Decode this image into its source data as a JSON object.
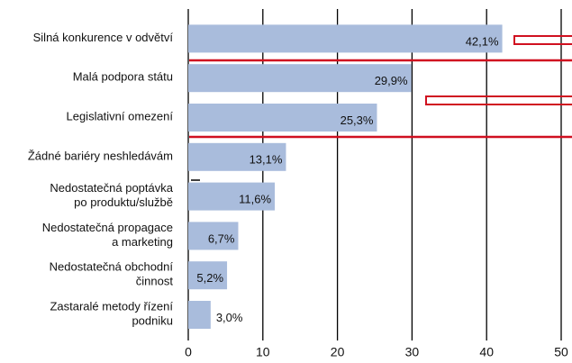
{
  "chart_data": {
    "type": "bar",
    "orientation": "horizontal",
    "categories": [
      [
        "Silná konkurence v odvětví"
      ],
      [
        "Malá podpora státu"
      ],
      [
        "Legislativní omezení"
      ],
      [
        "Žádné bariéry neshledávám"
      ],
      [
        "Nedostatečná poptávka",
        "po produktu/službě"
      ],
      [
        "Nedostatečná propagace",
        "a marketing"
      ],
      [
        "Nedostatečná obchodní",
        "činnost"
      ],
      [
        "Zastaralé metody řízení",
        "podniku"
      ]
    ],
    "values": [
      42.1,
      29.9,
      25.3,
      13.1,
      11.6,
      6.7,
      5.2,
      3.0
    ],
    "value_labels": [
      "42,1%",
      "29,9%",
      "25,3%",
      "13,1%",
      "11,6%",
      "6,7%",
      "5,2%",
      "3,0%"
    ],
    "color": "#a9bcdc",
    "xlim": [
      0,
      50
    ],
    "xticks": [
      0,
      10,
      20,
      30,
      40,
      50
    ],
    "grid": true
  }
}
